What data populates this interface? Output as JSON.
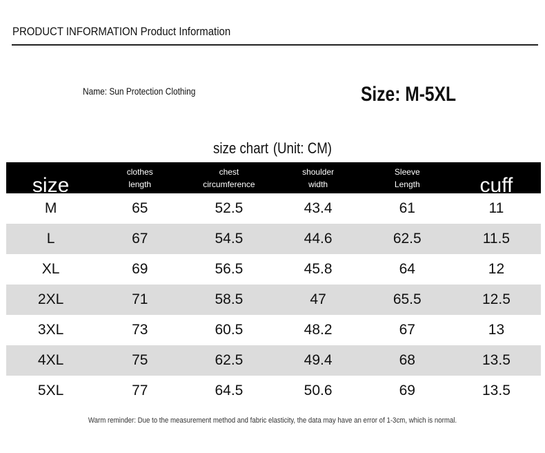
{
  "header": {
    "title": "PRODUCT INFORMATION Product Information"
  },
  "product": {
    "name": "Name: Sun Protection Clothing",
    "size": "Size: M-5XL"
  },
  "table": {
    "title": "size chart",
    "unit": "(Unit: CM)",
    "columns": [
      [
        "size"
      ],
      [
        "clothes",
        "length"
      ],
      [
        "chest",
        "circumference"
      ],
      [
        "shoulder",
        "width"
      ],
      [
        "Sleeve",
        "Length"
      ],
      [
        "cuff"
      ]
    ],
    "rows": [
      [
        "M",
        65,
        52.5,
        43.4,
        61,
        11
      ],
      [
        "L",
        67,
        54.5,
        44.6,
        62.5,
        11.5
      ],
      [
        "XL",
        69,
        56.5,
        45.8,
        64,
        12
      ],
      [
        "2XL",
        71,
        58.5,
        47,
        65.5,
        12.5
      ],
      [
        "3XL",
        73,
        60.5,
        48.2,
        67,
        13
      ],
      [
        "4XL",
        75,
        62.5,
        49.4,
        68,
        13.5
      ],
      [
        "5XL",
        77,
        64.5,
        50.6,
        69,
        13.5
      ]
    ]
  },
  "footer": {
    "note": "Warm reminder: Due to the measurement method and fabric elasticity, the data may have an error of 1-3cm, which is normal."
  }
}
